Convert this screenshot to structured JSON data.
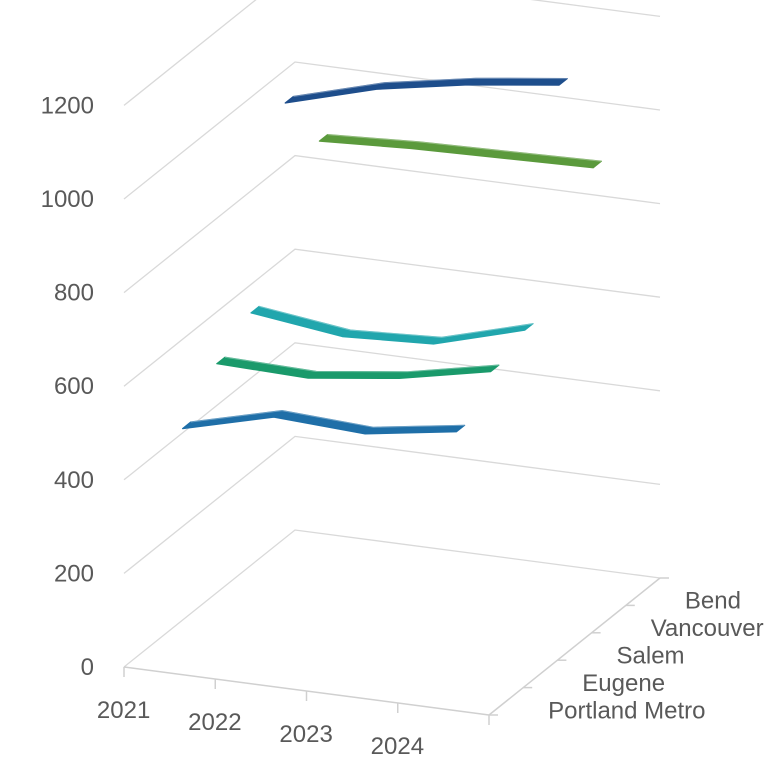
{
  "chart_data": {
    "type": "line",
    "title": "",
    "xlabel": "",
    "ylabel": "",
    "categories": [
      "2021",
      "2022",
      "2023",
      "2024"
    ],
    "ylim": [
      0,
      1200
    ],
    "yticks": [
      "0",
      "200",
      "400",
      "600",
      "800",
      "1000",
      "1200"
    ],
    "grid": true,
    "series_axis_labels": [
      "Portland Metro",
      "Eugene",
      "Salem",
      "Vancouver",
      "Bend"
    ],
    "series": [
      {
        "name": "Portland Metro",
        "values": [
          500,
          550,
          540,
          570
        ],
        "color": "#1f6fa8"
      },
      {
        "name": "Eugene",
        "values": [
          580,
          575,
          600,
          640
        ],
        "color": "#1a9a6b"
      },
      {
        "name": "Salem",
        "values": [
          630,
          605,
          615,
          670
        ],
        "color": "#21a6ad"
      },
      {
        "name": "Vancouver",
        "values": [
          1020,
          1075,
          1110,
          1135
        ],
        "color": "#1e4e8c"
      },
      {
        "name": "Bend",
        "values": [
          880,
          890,
          895,
          900
        ],
        "color": "#5b9a3c"
      }
    ]
  }
}
